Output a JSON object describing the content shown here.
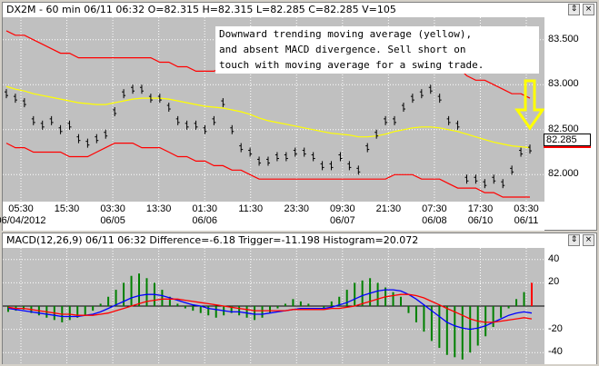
{
  "price_panel": {
    "header": "DX2M - 60 min 06/11 06:32 O=82.315 H=82.315 L=82.285 C=82.285 V=105",
    "annotation": "Downward trending moving average (yellow),\nand absent MACD divergence. Sell short on\ntouch with moving average for a swing trade.",
    "y_ticks": [
      "83.500",
      "83.000",
      "82.500",
      "82.000"
    ],
    "last_price": "82.285",
    "time_ticks": [
      {
        "top": "05:30",
        "bottom": "06/04/2012"
      },
      {
        "top": "15:30",
        "bottom": ""
      },
      {
        "top": "03:30",
        "bottom": "06/05"
      },
      {
        "top": "13:30",
        "bottom": ""
      },
      {
        "top": "01:30",
        "bottom": "06/06"
      },
      {
        "top": "11:30",
        "bottom": ""
      },
      {
        "top": "23:30",
        "bottom": ""
      },
      {
        "top": "09:30",
        "bottom": "06/07"
      },
      {
        "top": "21:30",
        "bottom": ""
      },
      {
        "top": "07:30",
        "bottom": "06/08"
      },
      {
        "top": "17:30",
        "bottom": "06/10"
      },
      {
        "top": "03:30",
        "bottom": "06/11"
      }
    ],
    "colors": {
      "price": "#000000",
      "band": "#ff0000",
      "ma": "#ffff00",
      "arrow": "#ffff00",
      "plot_bg": "#c0c0c0",
      "grid": "#ffffff"
    }
  },
  "macd_panel": {
    "header": "MACD(12,26,9) 06/11 06:32 Difference=-6.18 Trigger=-11.198 Histogram=20.072",
    "y_ticks": [
      "40",
      "20",
      "-20",
      "-40"
    ],
    "colors": {
      "histogram_pos": "#008000",
      "histogram_neg": "#008000",
      "histogram_last": "#ff0000",
      "difference": "#0000ff",
      "trigger": "#ff0000"
    }
  },
  "window_buttons": {
    "pin": "⇕",
    "close": "×"
  },
  "chart_data": [
    {
      "type": "line",
      "title": "DX2M - 60 min 06/11 06:32 O=82.315 H=82.315 L=82.285 C=82.285 V=105",
      "ylim": [
        81.7,
        83.75
      ],
      "y_ticks": [
        83.5,
        83.0,
        82.5,
        82.0
      ],
      "series": [
        {
          "values": [
            82.9,
            82.85,
            82.8,
            82.6,
            82.55,
            82.6,
            82.5,
            82.55,
            82.4,
            82.35,
            82.4,
            82.45,
            82.7,
            82.9,
            82.95,
            82.95,
            82.85,
            82.85,
            82.75,
            82.6,
            82.55,
            82.55,
            82.5,
            82.6,
            82.8,
            82.5,
            82.3,
            82.25,
            82.15,
            82.15,
            82.2,
            82.2,
            82.25,
            82.25,
            82.2,
            82.1,
            82.1,
            82.2,
            82.1,
            82.05,
            82.3,
            82.45,
            82.6,
            82.6,
            82.75,
            82.85,
            82.9,
            82.95,
            82.85,
            82.6,
            82.55,
            81.95,
            81.95,
            81.9,
            81.95,
            81.9,
            82.05,
            82.25,
            82.285
          ]
        },
        {
          "values": [
            83.6,
            83.55,
            83.55,
            83.5,
            83.45,
            83.4,
            83.35,
            83.35,
            83.3,
            83.3,
            83.3,
            83.3,
            83.3,
            83.3,
            83.3,
            83.3,
            83.3,
            83.25,
            83.25,
            83.2,
            83.2,
            83.15,
            83.15,
            83.15,
            83.2,
            83.2,
            83.2,
            83.2,
            83.15,
            83.15,
            83.15,
            83.15,
            83.2,
            83.25,
            83.3,
            83.35,
            83.4,
            83.4,
            83.45,
            83.45,
            83.5,
            83.5,
            83.5,
            83.5,
            83.5,
            83.5,
            83.5,
            83.45,
            83.4,
            83.3,
            83.2,
            83.1,
            83.05,
            83.05,
            83.0,
            82.95,
            82.9,
            82.9,
            82.85
          ]
        },
        {
          "values": [
            82.35,
            82.3,
            82.3,
            82.25,
            82.25,
            82.25,
            82.25,
            82.2,
            82.2,
            82.2,
            82.25,
            82.3,
            82.35,
            82.35,
            82.35,
            82.3,
            82.3,
            82.3,
            82.25,
            82.2,
            82.2,
            82.15,
            82.15,
            82.1,
            82.1,
            82.05,
            82.05,
            82.0,
            81.95,
            81.95,
            81.95,
            81.95,
            81.95,
            81.95,
            81.95,
            81.95,
            81.95,
            81.95,
            81.95,
            81.95,
            81.95,
            81.95,
            81.95,
            82.0,
            82.0,
            82.0,
            81.95,
            81.95,
            81.95,
            81.9,
            81.85,
            81.85,
            81.85,
            81.8,
            81.8,
            81.75,
            81.75,
            81.75,
            81.75
          ]
        },
        {
          "values": [
            82.98,
            82.95,
            82.93,
            82.9,
            82.88,
            82.86,
            82.84,
            82.82,
            82.8,
            82.79,
            82.78,
            82.78,
            82.8,
            82.82,
            82.84,
            82.85,
            82.85,
            82.85,
            82.84,
            82.82,
            82.8,
            82.78,
            82.76,
            82.75,
            82.74,
            82.72,
            82.7,
            82.67,
            82.63,
            82.6,
            82.58,
            82.56,
            82.54,
            82.52,
            82.5,
            82.48,
            82.46,
            82.45,
            82.44,
            82.42,
            82.42,
            82.43,
            82.45,
            82.48,
            82.5,
            82.52,
            82.53,
            82.53,
            82.52,
            82.5,
            82.48,
            82.45,
            82.42,
            82.39,
            82.36,
            82.34,
            82.32,
            82.31,
            82.3
          ]
        }
      ]
    },
    {
      "type": "bar",
      "title": "MACD(12,26,9) 06/11 06:32 Difference=-6.18 Trigger=-11.198 Histogram=20.072",
      "ylim": [
        -50,
        50
      ],
      "y_ticks": [
        40,
        20,
        -20,
        -40
      ],
      "series": [
        {
          "values": [
            -5,
            -4,
            -3,
            -6,
            -8,
            -10,
            -12,
            -14,
            -12,
            -10,
            -8,
            -4,
            2,
            8,
            14,
            20,
            26,
            28,
            24,
            20,
            14,
            8,
            2,
            -2,
            -4,
            -6,
            -8,
            -10,
            -8,
            -6,
            -8,
            -10,
            -12,
            -10,
            -6,
            -2,
            2,
            6,
            4,
            2,
            0,
            -2,
            4,
            8,
            14,
            20,
            22,
            24,
            20,
            16,
            12,
            8,
            -6,
            -14,
            -22,
            -30,
            -36,
            -42,
            -44,
            -46,
            -40,
            -34,
            -26,
            -18,
            -10,
            -2,
            6,
            12,
            20
          ]
        },
        {
          "values": [
            -2,
            -3,
            -4,
            -5,
            -6,
            -7,
            -8,
            -9,
            -9,
            -9,
            -8,
            -7,
            -5,
            -2,
            1,
            4,
            7,
            9,
            10,
            10,
            9,
            7,
            5,
            3,
            1,
            0,
            -2,
            -3,
            -4,
            -5,
            -5,
            -6,
            -7,
            -7,
            -6,
            -5,
            -4,
            -3,
            -2,
            -2,
            -2,
            -2,
            -1,
            1,
            3,
            6,
            9,
            11,
            13,
            14,
            14,
            13,
            10,
            6,
            1,
            -4,
            -9,
            -14,
            -17,
            -19,
            -20,
            -19,
            -17,
            -14,
            -11,
            -8,
            -6,
            -5,
            -6
          ]
        },
        {
          "values": [
            -1,
            -2,
            -2,
            -3,
            -4,
            -5,
            -6,
            -7,
            -7,
            -8,
            -8,
            -8,
            -7,
            -6,
            -4,
            -2,
            0,
            2,
            4,
            5,
            6,
            6,
            6,
            5,
            4,
            3,
            2,
            1,
            0,
            -1,
            -2,
            -3,
            -4,
            -4,
            -4,
            -4,
            -4,
            -3,
            -3,
            -3,
            -3,
            -3,
            -2,
            -2,
            -1,
            0,
            2,
            4,
            6,
            8,
            9,
            10,
            10,
            9,
            7,
            4,
            1,
            -2,
            -5,
            -8,
            -11,
            -13,
            -14,
            -14,
            -13,
            -12,
            -11,
            -10,
            -11
          ]
        }
      ]
    }
  ]
}
